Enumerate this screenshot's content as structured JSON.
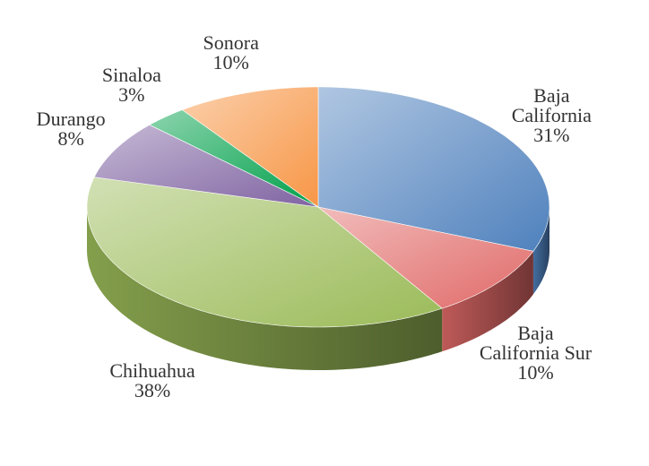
{
  "chart_data": {
    "type": "pie",
    "categories": [
      "Baja California",
      "Baja California Sur",
      "Chihuahua",
      "Durango",
      "Sinaloa",
      "Sonora"
    ],
    "values": [
      31,
      10,
      38,
      8,
      3,
      10
    ],
    "value_labels": [
      "31%",
      "10%",
      "38%",
      "8%",
      "3%",
      "10%"
    ],
    "colors": [
      "#4f81bd",
      "#e06a68",
      "#9bbb59",
      "#8064a2",
      "#00a04a",
      "#f79646"
    ]
  }
}
